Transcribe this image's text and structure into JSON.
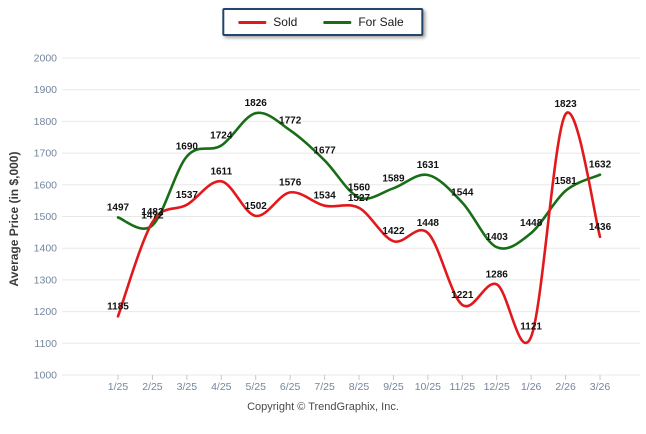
{
  "legend": {
    "items": [
      {
        "label": "Sold",
        "color": "#e2191c"
      },
      {
        "label": "For Sale",
        "color": "#176e17"
      }
    ]
  },
  "footer": {
    "copyright": "Copyright © TrendGraphix, Inc."
  },
  "colors": {
    "sold_line": "#e2191c",
    "for_sale_line": "#176e17",
    "grid": "#e8e8e8",
    "axis_tick": "#c8c8c8",
    "axis_label": "#74869c",
    "data_label": "#121212",
    "legend_border": "#24466b"
  },
  "chart_data": {
    "type": "line",
    "title": "",
    "xlabel": "",
    "ylabel": "Average Price (in $,000)",
    "ylim": [
      1000,
      2000
    ],
    "y_ticks": [
      2000,
      1900,
      1800,
      1700,
      1600,
      1500,
      1400,
      1300,
      1200,
      1100,
      1000
    ],
    "grid": true,
    "smooth": true,
    "data_labels": true,
    "legend_position": "top-center",
    "categories": [
      "1/25",
      "2/25",
      "3/25",
      "4/25",
      "5/25",
      "6/25",
      "7/25",
      "8/25",
      "9/25",
      "10/25",
      "11/25",
      "12/25",
      "1/26",
      "2/26",
      "3/26"
    ],
    "series": [
      {
        "name": "Sold",
        "color": "#e2191c",
        "values": [
          1185,
          1482,
          1537,
          1611,
          1502,
          1576,
          1534,
          1527,
          1422,
          1448,
          1221,
          1286,
          1121,
          1823,
          1436
        ]
      },
      {
        "name": "For Sale",
        "color": "#176e17",
        "values": [
          1497,
          1472,
          1690,
          1724,
          1826,
          1772,
          1677,
          1560,
          1589,
          1631,
          1544,
          1403,
          1448,
          1581,
          1632
        ]
      }
    ]
  }
}
